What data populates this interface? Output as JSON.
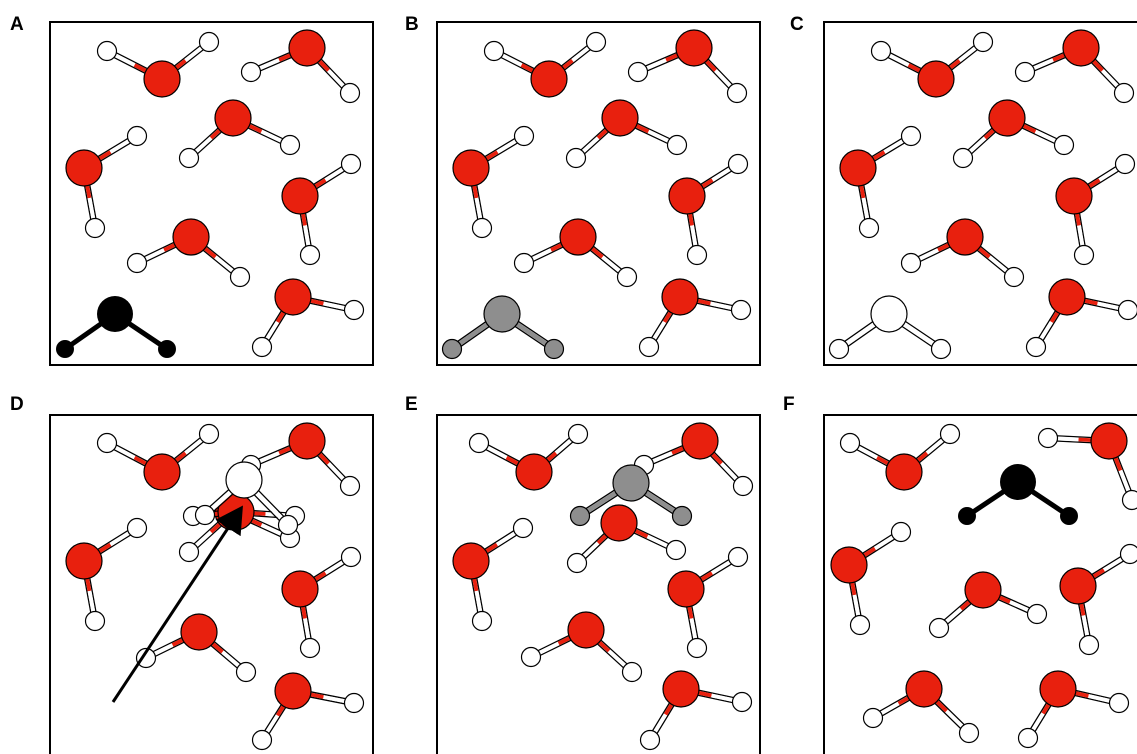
{
  "colors": {
    "oxygen": "#e8200e",
    "hydrogen": "#ffffff",
    "outline": "#000000",
    "probe_black": "#000000",
    "probe_gray": "#8e8e8e",
    "probe_white": "#ffffff",
    "bond_white": "#ffffff",
    "arrow": "#000000"
  },
  "panels": [
    {
      "label": "A",
      "probe_style": "black"
    },
    {
      "label": "B",
      "probe_style": "gray"
    },
    {
      "label": "C",
      "probe_style": "white"
    },
    {
      "label": "D",
      "probe_style": "white-overlap",
      "arrow": true
    },
    {
      "label": "E",
      "probe_style": "gray"
    },
    {
      "label": "F",
      "probe_style": "black"
    }
  ]
}
